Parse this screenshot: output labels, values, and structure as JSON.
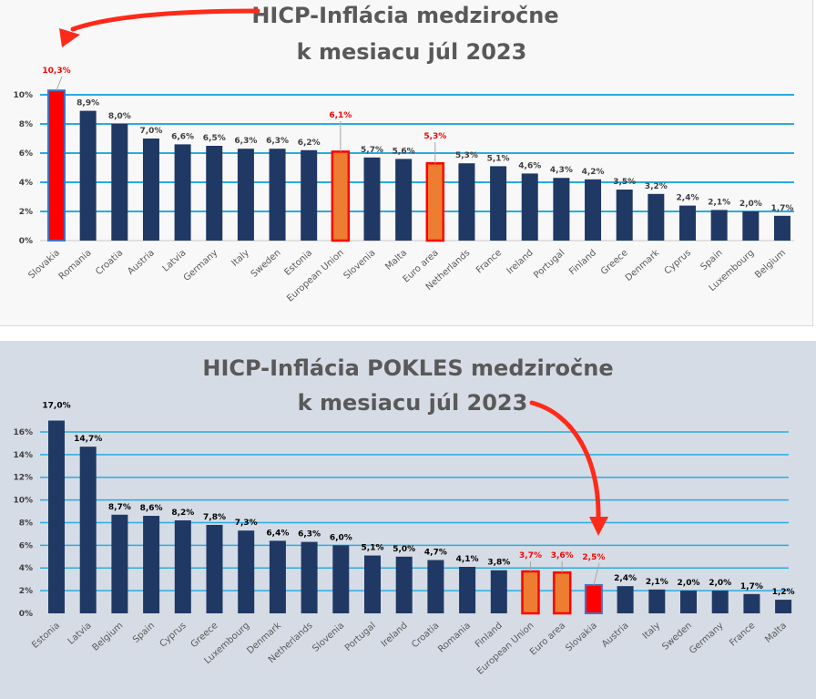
{
  "colors": {
    "bar_default": "#203864",
    "bar_slovakia": "#ff0000",
    "bar_aggregate": "#ed7d31",
    "highlight_outline": "#ff0000",
    "slovakia_outline": "#4472c4",
    "gridline": "#29abe2",
    "arrow": "#ff2a1a",
    "title": "#595959",
    "label_default_top": "#404040",
    "label_default_bottom": "#000000",
    "label_highlight": "#ff0000"
  },
  "chart_data": [
    {
      "type": "bar",
      "title": "HICP-Inflácia medziročne",
      "subtitle": "k mesiacu júl 2023",
      "xlabel": "",
      "ylabel": "",
      "ylim": [
        0,
        10
      ],
      "yticks": [
        "0%",
        "2%",
        "4%",
        "6%",
        "8%",
        "10%"
      ],
      "ytick_values": [
        0,
        2,
        4,
        6,
        8,
        10
      ],
      "grid": true,
      "legend": "none",
      "categories": [
        "Slovakia",
        "Romania",
        "Croatia",
        "Austria",
        "Latvia",
        "Germany",
        "Italy",
        "Sweden",
        "Estonia",
        "European Union",
        "Slovenia",
        "Malta",
        "Euro area",
        "Netherlands",
        "France",
        "Ireland",
        "Portugal",
        "Finland",
        "Greece",
        "Denmark",
        "Cyprus",
        "Spain",
        "Luxembourg",
        "Belgium"
      ],
      "values": [
        10.3,
        8.9,
        8.0,
        7.0,
        6.6,
        6.5,
        6.3,
        6.3,
        6.2,
        6.1,
        5.7,
        5.6,
        5.3,
        5.3,
        5.1,
        4.6,
        4.3,
        4.2,
        3.5,
        3.2,
        2.4,
        2.1,
        2.0,
        1.7
      ],
      "data_labels": [
        "10,3%",
        "8,9%",
        "8,0%",
        "7,0%",
        "6,6%",
        "6,5%",
        "6,3%",
        "6,3%",
        "6,2%",
        "6,1%",
        "5,7%",
        "5,6%",
        "5,3%",
        "5,3%",
        "5,1%",
        "4,6%",
        "4,3%",
        "4,2%",
        "3,5%",
        "3,2%",
        "2,4%",
        "2,1%",
        "2,0%",
        "1,7%"
      ],
      "highlights": {
        "Slovakia": "country",
        "European Union": "aggregate",
        "Euro area": "aggregate"
      },
      "annotation": "arrow from title to Slovakia"
    },
    {
      "type": "bar",
      "title": "HICP-Inflácia POKLES medziročne",
      "subtitle": "k mesiacu júl 2023",
      "xlabel": "",
      "ylabel": "",
      "ylim": [
        0,
        16
      ],
      "yticks": [
        "0%",
        "2%",
        "4%",
        "6%",
        "8%",
        "10%",
        "12%",
        "14%",
        "16%"
      ],
      "ytick_values": [
        0,
        2,
        4,
        6,
        8,
        10,
        12,
        14,
        16
      ],
      "grid": true,
      "legend": "none",
      "categories": [
        "Estonia",
        "Latvia",
        "Belgium",
        "Spain",
        "Cyprus",
        "Greece",
        "Luxembourg",
        "Denmark",
        "Netherlands",
        "Slovenia",
        "Portugal",
        "Ireland",
        "Croatia",
        "Romania",
        "Finland",
        "European Union",
        "Euro area",
        "Slovakia",
        "Austria",
        "Italy",
        "Sweden",
        "Germany",
        "France",
        "Malta"
      ],
      "values": [
        17.0,
        14.7,
        8.7,
        8.6,
        8.2,
        7.8,
        7.3,
        6.4,
        6.3,
        6.0,
        5.1,
        5.0,
        4.7,
        4.1,
        3.8,
        3.7,
        3.6,
        2.5,
        2.4,
        2.1,
        2.0,
        2.0,
        1.7,
        1.2
      ],
      "data_labels": [
        "17,0%",
        "14,7%",
        "8,7%",
        "8,6%",
        "8,2%",
        "7,8%",
        "7,3%",
        "6,4%",
        "6,3%",
        "6,0%",
        "5,1%",
        "5,0%",
        "4,7%",
        "4,1%",
        "3,8%",
        "3,7%",
        "3,6%",
        "2,5%",
        "2,4%",
        "2,1%",
        "2,0%",
        "2,0%",
        "1,7%",
        "1,2%"
      ],
      "highlights": {
        "Slovakia": "country",
        "European Union": "aggregate",
        "Euro area": "aggregate"
      },
      "annotation": "arrow from title to Slovakia"
    }
  ]
}
